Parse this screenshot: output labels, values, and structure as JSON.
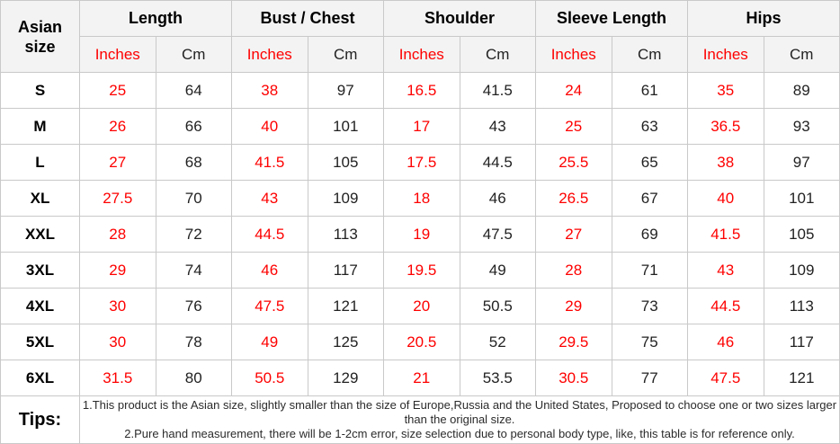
{
  "colors": {
    "inches_accent": "#fe0000",
    "value_text": "#222222",
    "header_bg": "#f3f3f3",
    "grid_border": "#c9c9c9"
  },
  "chart_data": {
    "type": "table",
    "corner_header": "Asian size",
    "groups": [
      "Length",
      "Bust / Chest",
      "Shoulder",
      "Sleeve Length",
      "Hips"
    ],
    "units": [
      "Inches",
      "Cm"
    ],
    "columns": [
      "Asian size",
      "Length Inches",
      "Length Cm",
      "Bust / Chest Inches",
      "Bust / Chest Cm",
      "Shoulder Inches",
      "Shoulder Cm",
      "Sleeve Length Inches",
      "Sleeve Length Cm",
      "Hips Inches",
      "Hips Cm"
    ],
    "rows": [
      [
        "S",
        "25",
        "64",
        "38",
        "97",
        "16.5",
        "41.5",
        "24",
        "61",
        "35",
        "89"
      ],
      [
        "M",
        "26",
        "66",
        "40",
        "101",
        "17",
        "43",
        "25",
        "63",
        "36.5",
        "93"
      ],
      [
        "L",
        "27",
        "68",
        "41.5",
        "105",
        "17.5",
        "44.5",
        "25.5",
        "65",
        "38",
        "97"
      ],
      [
        "XL",
        "27.5",
        "70",
        "43",
        "109",
        "18",
        "46",
        "26.5",
        "67",
        "40",
        "101"
      ],
      [
        "XXL",
        "28",
        "72",
        "44.5",
        "113",
        "19",
        "47.5",
        "27",
        "69",
        "41.5",
        "105"
      ],
      [
        "3XL",
        "29",
        "74",
        "46",
        "117",
        "19.5",
        "49",
        "28",
        "71",
        "43",
        "109"
      ],
      [
        "4XL",
        "30",
        "76",
        "47.5",
        "121",
        "20",
        "50.5",
        "29",
        "73",
        "44.5",
        "113"
      ],
      [
        "5XL",
        "30",
        "78",
        "49",
        "125",
        "20.5",
        "52",
        "29.5",
        "75",
        "46",
        "117"
      ],
      [
        "6XL",
        "31.5",
        "80",
        "50.5",
        "129",
        "21",
        "53.5",
        "30.5",
        "77",
        "47.5",
        "121"
      ]
    ],
    "tips_label": "Tips:",
    "tips": [
      "1.This product is the Asian size, slightly smaller than the size of Europe,Russia and the United States, Proposed to choose one or two sizes larger than the original size.",
      "2.Pure hand measurement, there will be 1-2cm error, size selection due to personal body type, like, this table is for reference only."
    ]
  }
}
